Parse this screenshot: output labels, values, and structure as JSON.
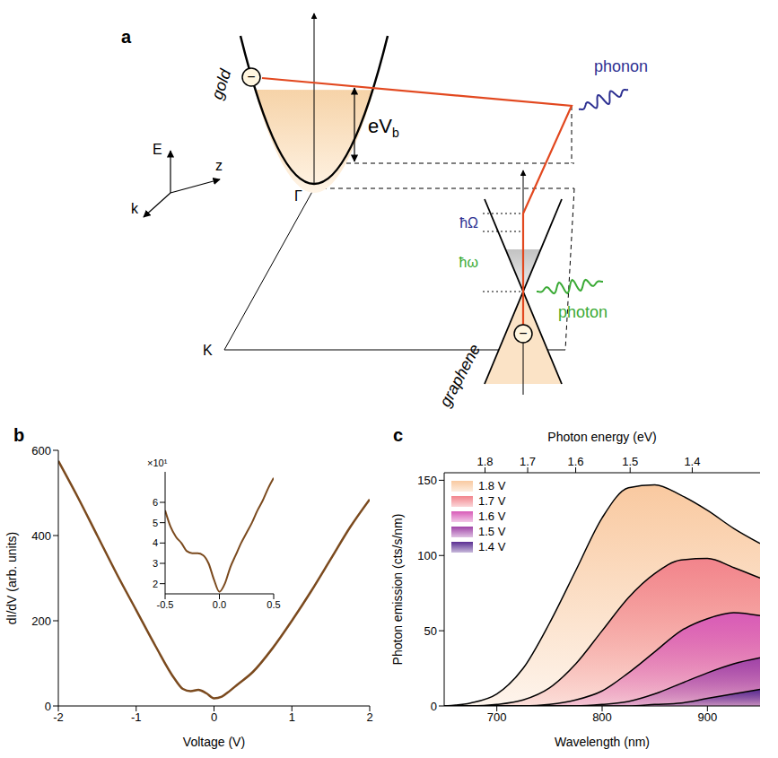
{
  "diagram": {
    "panel": "a",
    "axes": [
      "E",
      "z",
      "k"
    ],
    "gold": {
      "label": "gold",
      "point": "Γ",
      "electron": "−"
    },
    "bias": {
      "label": "eV",
      "subscript": "b"
    },
    "phonon": "phonon",
    "energies": {
      "phonon": "ħΩ",
      "photon": "ħω"
    },
    "photon": "photon",
    "graphene": {
      "label": "graphene",
      "point": "K",
      "electron": "−"
    }
  },
  "chart_data": [
    {
      "panel": "b",
      "type": "line",
      "x_label": "Voltage (V)",
      "y_label": "dI/dV (arb. units)",
      "color": "#7b4a1e",
      "x": [
        -2,
        -1.75,
        -1.5,
        -1.25,
        -1,
        -0.75,
        -0.5,
        -0.4,
        -0.3,
        -0.2,
        -0.1,
        0,
        0.1,
        0.2,
        0.3,
        0.5,
        0.75,
        1,
        1.25,
        1.5,
        1.75,
        2
      ],
      "values": [
        575,
        490,
        400,
        310,
        225,
        140,
        62,
        40,
        35,
        38,
        30,
        18,
        22,
        35,
        50,
        80,
        135,
        200,
        270,
        345,
        420,
        485
      ],
      "xlim": [
        -2,
        2
      ],
      "ylim": [
        0,
        600
      ],
      "xticks": [
        -2,
        -1,
        0,
        1,
        2
      ],
      "yticks": [
        0,
        200,
        400,
        600
      ],
      "inset": {
        "type": "line",
        "color": "#7b4a1e",
        "y_scale_label": "×10¹",
        "x": [
          -0.5,
          -0.45,
          -0.4,
          -0.35,
          -0.3,
          -0.25,
          -0.2,
          -0.15,
          -0.1,
          -0.05,
          0,
          0.05,
          0.1,
          0.15,
          0.2,
          0.25,
          0.3,
          0.35,
          0.4,
          0.45,
          0.5
        ],
        "values": [
          5.6,
          4.8,
          4.3,
          4.0,
          3.6,
          3.5,
          3.5,
          3.4,
          3.0,
          2.2,
          1.6,
          2.0,
          2.8,
          3.4,
          4.0,
          4.5,
          5.0,
          5.6,
          6.1,
          6.7,
          7.2
        ],
        "xlim": [
          -0.5,
          0.5
        ],
        "ylim": [
          1.5,
          7.5
        ],
        "xticks": [
          -0.5,
          {
            "value": 0,
            "label": "0.0"
          },
          0.5
        ],
        "yticks": [
          2,
          3,
          4,
          5,
          6
        ]
      }
    },
    {
      "panel": "c",
      "type": "area",
      "x_label": "Wavelength (nm)",
      "y_label": "Photon emission (cts/s/nm)",
      "x2_label": "Photon energy (eV)",
      "legend": "upper left",
      "x": [
        650,
        675,
        700,
        725,
        750,
        775,
        800,
        825,
        850,
        875,
        900,
        925,
        950
      ],
      "series": [
        {
          "name": "1.8 V",
          "color": "#f9c9a0",
          "values": [
            0,
            2,
            8,
            25,
            55,
            90,
            125,
            145,
            147,
            140,
            130,
            118,
            108
          ]
        },
        {
          "name": "1.7 V",
          "color": "#f2848c",
          "values": [
            0,
            0,
            1,
            4,
            12,
            28,
            50,
            72,
            88,
            97,
            98,
            92,
            85
          ]
        },
        {
          "name": "1.6 V",
          "color": "#d85bb8",
          "values": [
            0,
            0,
            0,
            0,
            1,
            4,
            10,
            22,
            36,
            50,
            58,
            62,
            60
          ]
        },
        {
          "name": "1.5 V",
          "color": "#a044a8",
          "values": [
            0,
            0,
            0,
            0,
            0,
            0,
            1,
            3,
            8,
            15,
            22,
            28,
            32
          ]
        },
        {
          "name": "1.4 V",
          "color": "#5a2e92",
          "values": [
            0,
            0,
            0,
            0,
            0,
            0,
            0,
            0,
            1,
            2,
            5,
            8,
            11
          ]
        }
      ],
      "xlim": [
        650,
        950
      ],
      "ylim": [
        0,
        155
      ],
      "xticks": [
        700,
        800,
        900
      ],
      "yticks": [
        0,
        50,
        100,
        150
      ],
      "x2ticks": [
        {
          "value": 688.8,
          "label": "1.8"
        },
        {
          "value": 729.3,
          "label": "1.7"
        },
        {
          "value": 774.9,
          "label": "1.6"
        },
        {
          "value": 826.6,
          "label": "1.5"
        },
        {
          "value": 885.6,
          "label": "1.4"
        }
      ]
    }
  ]
}
